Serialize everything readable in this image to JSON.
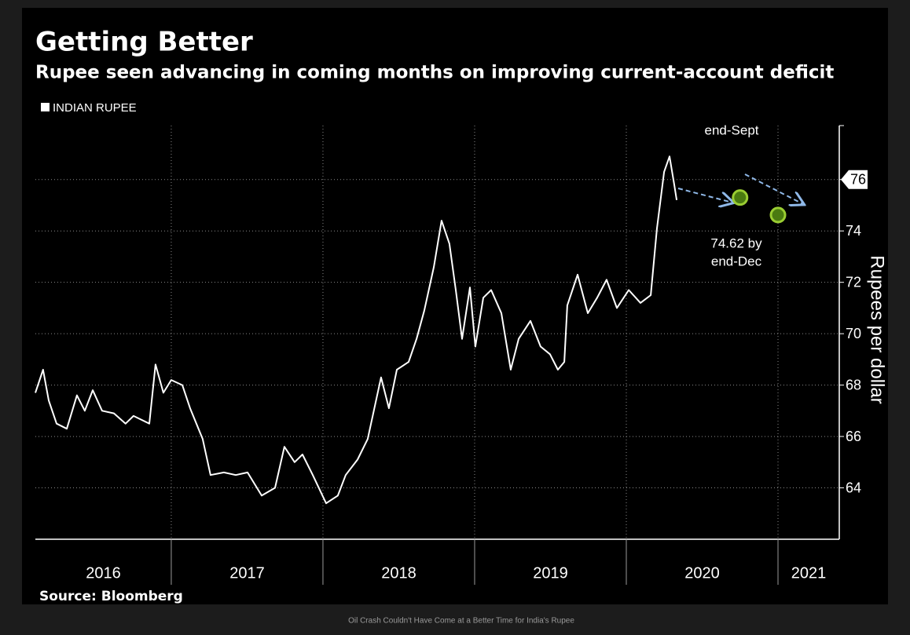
{
  "chart_data": {
    "type": "line",
    "title": "Getting Better",
    "subtitle": "Rupee seen advancing in coming months on improving current-account deficit",
    "y_label": "Rupees per dollar",
    "source": "Source: Bloomberg",
    "caption": "Oil Crash Couldn't Have Come at a Better Time for India's Rupee",
    "annotations": [
      "end-Sept",
      "74.62 by",
      "end-Dec"
    ],
    "xlim": [
      2016.104,
      2021.404
    ],
    "xticks": [
      2016,
      2017,
      2018,
      2019,
      2020,
      2021
    ],
    "ylim": [
      62,
      78.1
    ],
    "yticks": [
      64,
      66,
      68,
      70,
      72,
      74,
      76
    ],
    "grid": true,
    "last_value_flag": true,
    "series": [
      {
        "name": "INDIAN RUPEE",
        "color": "#ffffff",
        "x": [
          2016.104,
          2016.155,
          2016.192,
          2016.244,
          2016.311,
          2016.378,
          2016.43,
          2016.482,
          2016.544,
          2016.622,
          2016.699,
          2016.751,
          2016.855,
          2016.896,
          2016.948,
          2017.0,
          2017.073,
          2017.124,
          2017.207,
          2017.259,
          2017.347,
          2017.425,
          2017.503,
          2017.596,
          2017.684,
          2017.746,
          2017.813,
          2017.865,
          2017.933,
          2018.021,
          2018.098,
          2018.15,
          2018.228,
          2018.295,
          2018.383,
          2018.435,
          2018.487,
          2018.565,
          2018.617,
          2018.668,
          2018.731,
          2018.782,
          2018.834,
          2018.876,
          2018.917,
          2018.969,
          2019.005,
          2019.057,
          2019.109,
          2019.176,
          2019.238,
          2019.29,
          2019.368,
          2019.435,
          2019.497,
          2019.549,
          2019.591,
          2019.611,
          2019.679,
          2019.746,
          2019.808,
          2019.87,
          2019.938,
          2020.016,
          2020.093,
          2020.161,
          2020.202,
          2020.249,
          2020.285,
          2020.316,
          2020.332
        ],
        "values": [
          67.7,
          68.6,
          67.4,
          66.5,
          66.3,
          67.6,
          67.0,
          67.8,
          67.0,
          66.9,
          66.5,
          66.8,
          66.5,
          68.8,
          67.7,
          68.2,
          68.0,
          67.1,
          65.9,
          64.5,
          64.6,
          64.5,
          64.6,
          63.7,
          64.0,
          65.6,
          65.0,
          65.3,
          64.5,
          63.4,
          63.7,
          64.5,
          65.1,
          65.9,
          68.3,
          67.1,
          68.6,
          68.9,
          69.8,
          70.9,
          72.6,
          74.4,
          73.5,
          71.7,
          69.8,
          71.8,
          69.5,
          71.4,
          71.7,
          70.8,
          68.6,
          69.8,
          70.5,
          69.5,
          69.2,
          68.6,
          68.9,
          71.1,
          72.3,
          70.8,
          71.4,
          72.1,
          71.0,
          71.7,
          71.2,
          71.5,
          74.1,
          76.3,
          76.9,
          75.8,
          75.2
        ]
      },
      {
        "color": "#9acd32",
        "x": [
          2020.75,
          2021.0
        ],
        "values": [
          75.3,
          74.62
        ]
      }
    ]
  }
}
